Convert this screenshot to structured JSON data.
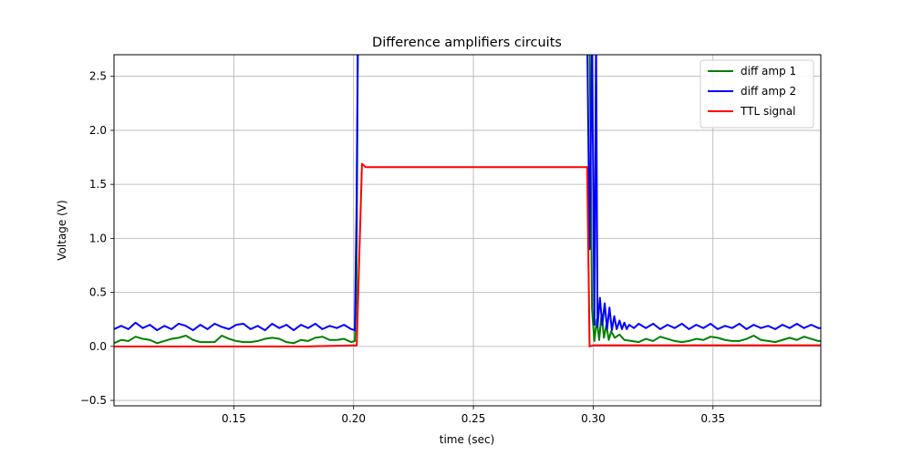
{
  "chart_data": {
    "type": "line",
    "title": "Difference amplifiers circuits",
    "xlabel": "time (sec)",
    "ylabel": "Voltage (V)",
    "xlim": [
      0.1,
      0.395
    ],
    "ylim": [
      -0.55,
      2.7
    ],
    "xticks": [
      0.15,
      0.2,
      0.25,
      0.3,
      0.35
    ],
    "xtick_labels": [
      "0.15",
      "0.20",
      "0.25",
      "0.30",
      "0.35"
    ],
    "yticks": [
      -0.5,
      0.0,
      0.5,
      1.0,
      1.5,
      2.0,
      2.5
    ],
    "ytick_labels": [
      "−0.5",
      "0.0",
      "0.5",
      "1.0",
      "1.5",
      "2.0",
      "2.5"
    ],
    "grid": true,
    "legend_position": "top-right",
    "series": [
      {
        "name": "diff amp 1",
        "color": "#008000",
        "points": [
          [
            0.1,
            0.03
          ],
          [
            0.103,
            0.06
          ],
          [
            0.106,
            0.05
          ],
          [
            0.109,
            0.09
          ],
          [
            0.112,
            0.07
          ],
          [
            0.115,
            0.06
          ],
          [
            0.118,
            0.03
          ],
          [
            0.121,
            0.05
          ],
          [
            0.124,
            0.07
          ],
          [
            0.127,
            0.08
          ],
          [
            0.13,
            0.1
          ],
          [
            0.133,
            0.06
          ],
          [
            0.136,
            0.04
          ],
          [
            0.139,
            0.04
          ],
          [
            0.142,
            0.04
          ],
          [
            0.145,
            0.1
          ],
          [
            0.148,
            0.07
          ],
          [
            0.151,
            0.05
          ],
          [
            0.154,
            0.04
          ],
          [
            0.157,
            0.04
          ],
          [
            0.16,
            0.05
          ],
          [
            0.163,
            0.07
          ],
          [
            0.166,
            0.08
          ],
          [
            0.169,
            0.07
          ],
          [
            0.172,
            0.04
          ],
          [
            0.175,
            0.03
          ],
          [
            0.178,
            0.06
          ],
          [
            0.181,
            0.05
          ],
          [
            0.184,
            0.08
          ],
          [
            0.187,
            0.09
          ],
          [
            0.19,
            0.06
          ],
          [
            0.193,
            0.06
          ],
          [
            0.196,
            0.07
          ],
          [
            0.199,
            0.04
          ],
          [
            0.2005,
            0.05
          ],
          [
            0.2012,
            0.5
          ],
          [
            0.2018,
            2.9
          ],
          [
            0.2985,
            2.9
          ],
          [
            0.2995,
            0.35
          ],
          [
            0.3005,
            0.05
          ],
          [
            0.3015,
            0.25
          ],
          [
            0.3025,
            0.06
          ],
          [
            0.3035,
            0.3
          ],
          [
            0.3045,
            0.08
          ],
          [
            0.3055,
            0.2
          ],
          [
            0.3065,
            0.06
          ],
          [
            0.3075,
            0.14
          ],
          [
            0.309,
            0.08
          ],
          [
            0.311,
            0.11
          ],
          [
            0.313,
            0.06
          ],
          [
            0.316,
            0.05
          ],
          [
            0.319,
            0.04
          ],
          [
            0.322,
            0.07
          ],
          [
            0.325,
            0.05
          ],
          [
            0.328,
            0.09
          ],
          [
            0.331,
            0.07
          ],
          [
            0.334,
            0.05
          ],
          [
            0.337,
            0.04
          ],
          [
            0.34,
            0.05
          ],
          [
            0.343,
            0.07
          ],
          [
            0.346,
            0.06
          ],
          [
            0.349,
            0.09
          ],
          [
            0.352,
            0.08
          ],
          [
            0.355,
            0.06
          ],
          [
            0.358,
            0.05
          ],
          [
            0.361,
            0.05
          ],
          [
            0.364,
            0.07
          ],
          [
            0.367,
            0.1
          ],
          [
            0.37,
            0.06
          ],
          [
            0.373,
            0.05
          ],
          [
            0.376,
            0.04
          ],
          [
            0.379,
            0.06
          ],
          [
            0.382,
            0.08
          ],
          [
            0.385,
            0.06
          ],
          [
            0.388,
            0.09
          ],
          [
            0.391,
            0.07
          ],
          [
            0.394,
            0.05
          ],
          [
            0.395,
            0.05
          ]
        ]
      },
      {
        "name": "diff amp 2",
        "color": "#0000ff",
        "points": [
          [
            0.1,
            0.16
          ],
          [
            0.103,
            0.19
          ],
          [
            0.106,
            0.16
          ],
          [
            0.109,
            0.22
          ],
          [
            0.112,
            0.17
          ],
          [
            0.115,
            0.2
          ],
          [
            0.118,
            0.15
          ],
          [
            0.121,
            0.19
          ],
          [
            0.124,
            0.16
          ],
          [
            0.127,
            0.21
          ],
          [
            0.13,
            0.19
          ],
          [
            0.133,
            0.15
          ],
          [
            0.136,
            0.2
          ],
          [
            0.139,
            0.16
          ],
          [
            0.142,
            0.21
          ],
          [
            0.145,
            0.18
          ],
          [
            0.148,
            0.16
          ],
          [
            0.151,
            0.2
          ],
          [
            0.154,
            0.21
          ],
          [
            0.157,
            0.16
          ],
          [
            0.16,
            0.19
          ],
          [
            0.163,
            0.15
          ],
          [
            0.166,
            0.21
          ],
          [
            0.169,
            0.17
          ],
          [
            0.172,
            0.2
          ],
          [
            0.175,
            0.15
          ],
          [
            0.178,
            0.2
          ],
          [
            0.181,
            0.17
          ],
          [
            0.184,
            0.21
          ],
          [
            0.187,
            0.16
          ],
          [
            0.19,
            0.19
          ],
          [
            0.193,
            0.17
          ],
          [
            0.196,
            0.2
          ],
          [
            0.199,
            0.16
          ],
          [
            0.2005,
            0.15
          ],
          [
            0.2012,
            1.2
          ],
          [
            0.2018,
            2.9
          ],
          [
            0.2975,
            2.9
          ],
          [
            0.2985,
            0.9
          ],
          [
            0.2995,
            2.9
          ],
          [
            0.3005,
            0.2
          ],
          [
            0.3012,
            2.9
          ],
          [
            0.3018,
            0.18
          ],
          [
            0.3028,
            0.45
          ],
          [
            0.3038,
            0.2
          ],
          [
            0.3048,
            0.4
          ],
          [
            0.3058,
            0.16
          ],
          [
            0.3068,
            0.36
          ],
          [
            0.3078,
            0.15
          ],
          [
            0.3088,
            0.28
          ],
          [
            0.3098,
            0.16
          ],
          [
            0.311,
            0.24
          ],
          [
            0.312,
            0.16
          ],
          [
            0.313,
            0.22
          ],
          [
            0.314,
            0.16
          ],
          [
            0.315,
            0.2
          ],
          [
            0.317,
            0.17
          ],
          [
            0.319,
            0.21
          ],
          [
            0.322,
            0.17
          ],
          [
            0.325,
            0.21
          ],
          [
            0.328,
            0.16
          ],
          [
            0.331,
            0.2
          ],
          [
            0.334,
            0.17
          ],
          [
            0.337,
            0.21
          ],
          [
            0.34,
            0.16
          ],
          [
            0.343,
            0.2
          ],
          [
            0.346,
            0.17
          ],
          [
            0.349,
            0.21
          ],
          [
            0.352,
            0.16
          ],
          [
            0.355,
            0.19
          ],
          [
            0.358,
            0.17
          ],
          [
            0.361,
            0.21
          ],
          [
            0.364,
            0.16
          ],
          [
            0.367,
            0.2
          ],
          [
            0.37,
            0.17
          ],
          [
            0.373,
            0.19
          ],
          [
            0.376,
            0.16
          ],
          [
            0.379,
            0.2
          ],
          [
            0.382,
            0.17
          ],
          [
            0.385,
            0.21
          ],
          [
            0.388,
            0.17
          ],
          [
            0.391,
            0.2
          ],
          [
            0.394,
            0.17
          ],
          [
            0.395,
            0.17
          ]
        ]
      },
      {
        "name": "TTL signal",
        "color": "#ff0000",
        "points": [
          [
            0.1,
            0.0
          ],
          [
            0.12,
            0.0
          ],
          [
            0.15,
            0.0
          ],
          [
            0.18,
            0.0
          ],
          [
            0.2013,
            0.01
          ],
          [
            0.2035,
            1.69
          ],
          [
            0.205,
            1.66
          ],
          [
            0.22,
            1.66
          ],
          [
            0.25,
            1.66
          ],
          [
            0.28,
            1.66
          ],
          [
            0.2975,
            1.66
          ],
          [
            0.2985,
            0.0
          ],
          [
            0.3,
            0.01
          ],
          [
            0.32,
            0.01
          ],
          [
            0.35,
            0.01
          ],
          [
            0.38,
            0.01
          ],
          [
            0.395,
            0.01
          ]
        ]
      }
    ]
  }
}
